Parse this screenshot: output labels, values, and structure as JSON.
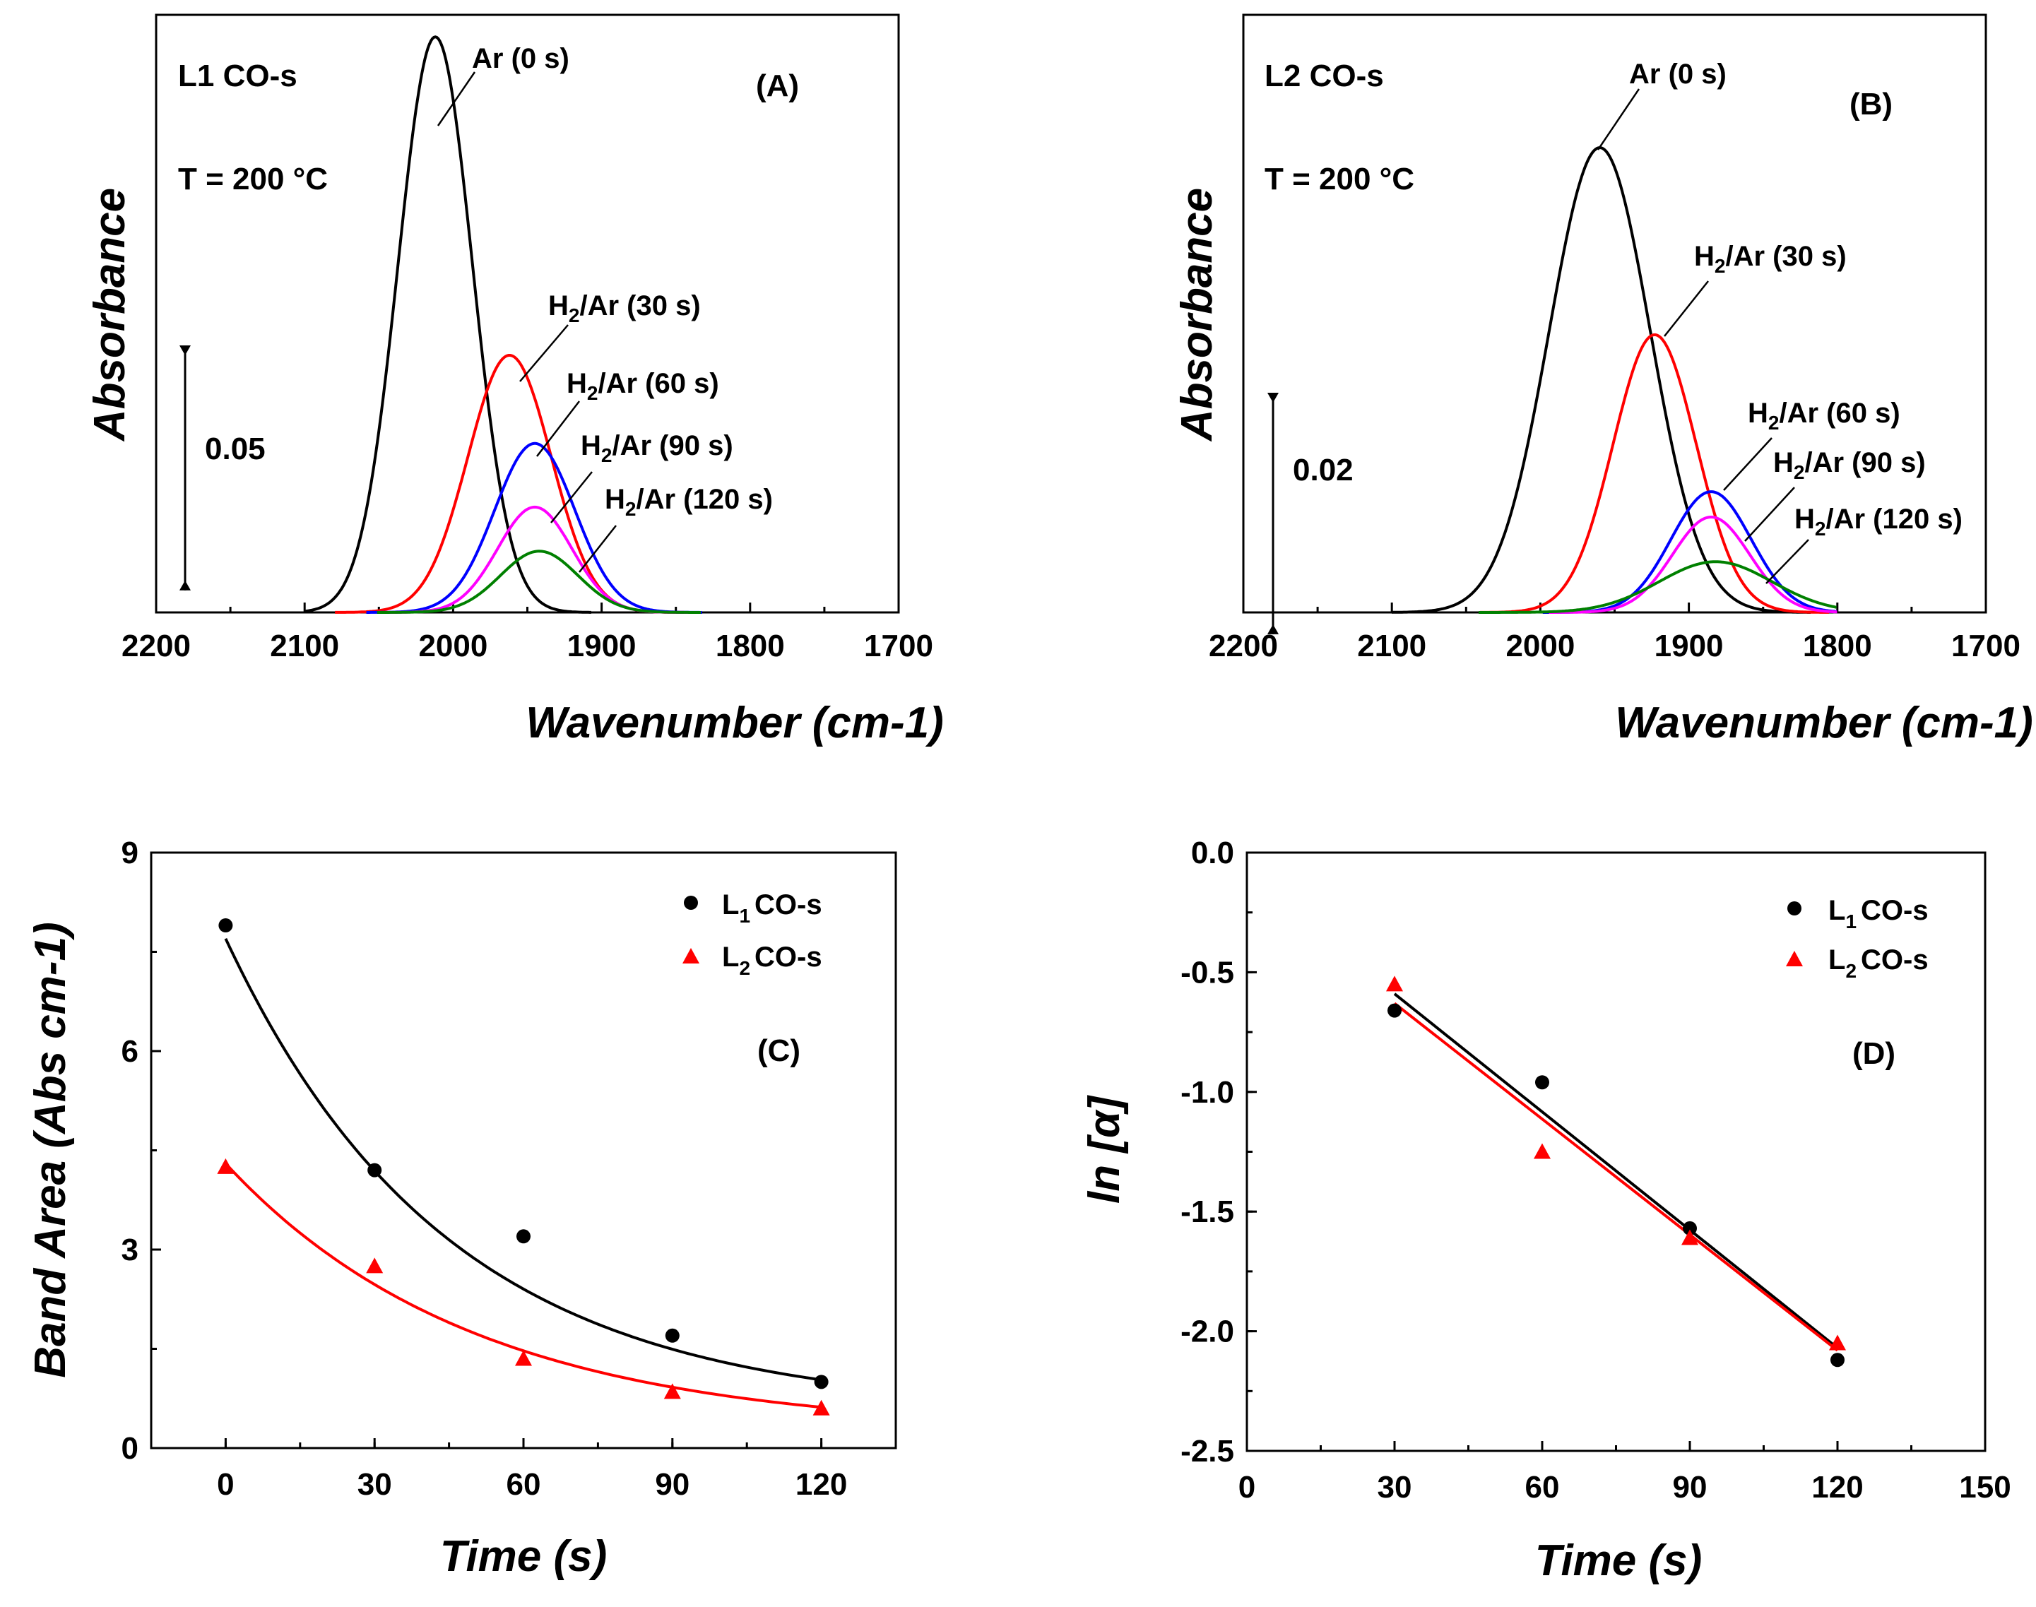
{
  "colors": {
    "black": "#000000",
    "red": "#ff0000",
    "blue": "#0000ff",
    "magenta": "#ff00ff",
    "green": "#008000"
  },
  "chart_data": [
    {
      "id": "A",
      "type": "line",
      "title": "(A)",
      "sample": "L1 CO-s",
      "temperature_label": "T = 200 °C",
      "scale_bar_label": "0.05",
      "scale_bar_value": 0.05,
      "xlabel": "Wavenumber (cm-1)",
      "ylabel": "Absorbance",
      "xlim": [
        2200,
        1700
      ],
      "ylim": [
        0,
        0.122
      ],
      "xticks": [
        "2200",
        "2100",
        "2000",
        "1900",
        "1800",
        "1700"
      ],
      "series": [
        {
          "name": "Ar (0 s)",
          "sub": "",
          "rest": "Ar (0 s)",
          "color": "#000000",
          "center": 2012,
          "sigma": 25,
          "height": 0.1175
        },
        {
          "name": "H2/Ar (30 s)",
          "sub": "2",
          "rest": "/Ar (30 s)",
          "color": "#ff0000",
          "center": 1962,
          "sigma": 28,
          "height": 0.0525
        },
        {
          "name": "H2/Ar (60 s)",
          "sub": "2",
          "rest": "/Ar (60 s)",
          "color": "#0000ff",
          "center": 1945,
          "sigma": 27,
          "height": 0.0345
        },
        {
          "name": "H2/Ar (90 s)",
          "sub": "2",
          "rest": "/Ar (90 s)",
          "color": "#ff00ff",
          "center": 1945,
          "sigma": 25,
          "height": 0.0215
        },
        {
          "name": "H2/Ar (120 s)",
          "sub": "2",
          "rest": "/Ar (120 s)",
          "color": "#008000",
          "center": 1942,
          "sigma": 26,
          "height": 0.0125
        }
      ]
    },
    {
      "id": "B",
      "type": "line",
      "title": "(B)",
      "sample": "L2 CO-s",
      "temperature_label": "T = 200 °C",
      "scale_bar_label": "0.02",
      "scale_bar_value": 0.02,
      "xlabel": "Wavenumber (cm-1)",
      "ylabel": "Absorbance",
      "xlim": [
        2200,
        1700
      ],
      "ylim": [
        0,
        0.0495
      ],
      "xticks": [
        "2200",
        "2100",
        "2000",
        "1900",
        "1800",
        "1700"
      ],
      "series": [
        {
          "name": "Ar (0 s)",
          "sub": "",
          "rest": "Ar (0 s)",
          "color": "#000000",
          "center": 1960,
          "sigma": 34,
          "height": 0.0385
        },
        {
          "name": "H2/Ar (30 s)",
          "sub": "2",
          "rest": "/Ar (30 s)",
          "color": "#ff0000",
          "center": 1923,
          "sigma": 28,
          "height": 0.023
        },
        {
          "name": "H2/Ar (60 s)",
          "sub": "2",
          "rest": "/Ar (60 s)",
          "color": "#0000ff",
          "center": 1885,
          "sigma": 27,
          "height": 0.01
        },
        {
          "name": "H2/Ar (90 s)",
          "sub": "2",
          "rest": "/Ar (90 s)",
          "color": "#ff00ff",
          "center": 1885,
          "sigma": 26,
          "height": 0.0079
        },
        {
          "name": "H2/Ar (120 s)",
          "sub": "2",
          "rest": "/Ar (120 s)",
          "color": "#008000",
          "center": 1882,
          "sigma": 38,
          "height": 0.0042
        }
      ]
    },
    {
      "id": "C",
      "type": "scatter",
      "title": "(C)",
      "xlabel": "Time (s)",
      "ylabel": "Band Area (Abs cm-1)",
      "xlim": [
        -15,
        135
      ],
      "ylim": [
        0,
        9
      ],
      "xticks": [
        "0",
        "30",
        "60",
        "90",
        "120"
      ],
      "yticks": [
        "0",
        "3",
        "6",
        "9"
      ],
      "legend": "top-right",
      "series": [
        {
          "name": "L1 CO-s",
          "sub": "1",
          "marker": "circle",
          "color": "#000000",
          "x": [
            0,
            30,
            60,
            90,
            120
          ],
          "y": [
            7.9,
            4.2,
            3.2,
            1.7,
            1.0
          ],
          "fit": {
            "model": "exponential",
            "a": 7.15,
            "k": 0.0225,
            "c": 0.55
          }
        },
        {
          "name": "L2 CO-s",
          "sub": "2",
          "marker": "triangle",
          "color": "#ff0000",
          "x": [
            0,
            30,
            60,
            90,
            120
          ],
          "y": [
            4.25,
            2.75,
            1.35,
            0.85,
            0.6
          ],
          "fit": {
            "model": "exponential",
            "a": 4.05,
            "k": 0.02,
            "c": 0.25
          }
        }
      ]
    },
    {
      "id": "D",
      "type": "scatter",
      "title": "(D)",
      "xlabel": "Time (s)",
      "ylabel": "ln [α]",
      "xlim": [
        0,
        150
      ],
      "ylim": [
        -2.5,
        0
      ],
      "xticks": [
        "0",
        "30",
        "60",
        "90",
        "120",
        "150"
      ],
      "yticks": [
        "0.0",
        "-0.5",
        "-1.0",
        "-1.5",
        "-2.0",
        "-2.5"
      ],
      "legend": "top-right",
      "series": [
        {
          "name": "L1 CO-s",
          "sub": "1",
          "marker": "circle",
          "color": "#000000",
          "x": [
            30,
            60,
            90,
            120
          ],
          "y": [
            -0.66,
            -0.96,
            -1.57,
            -2.12
          ],
          "fit": {
            "model": "linear",
            "x0": 30,
            "x1": 120,
            "y0": -0.59,
            "y1": -2.07
          }
        },
        {
          "name": "L2 CO-s",
          "sub": "2",
          "marker": "triangle",
          "color": "#ff0000",
          "x": [
            30,
            60,
            90,
            120
          ],
          "y": [
            -0.55,
            -1.25,
            -1.61,
            -2.05
          ],
          "fit": {
            "model": "linear",
            "x0": 30,
            "x1": 120,
            "y0": -0.63,
            "y1": -2.08
          }
        }
      ]
    }
  ]
}
